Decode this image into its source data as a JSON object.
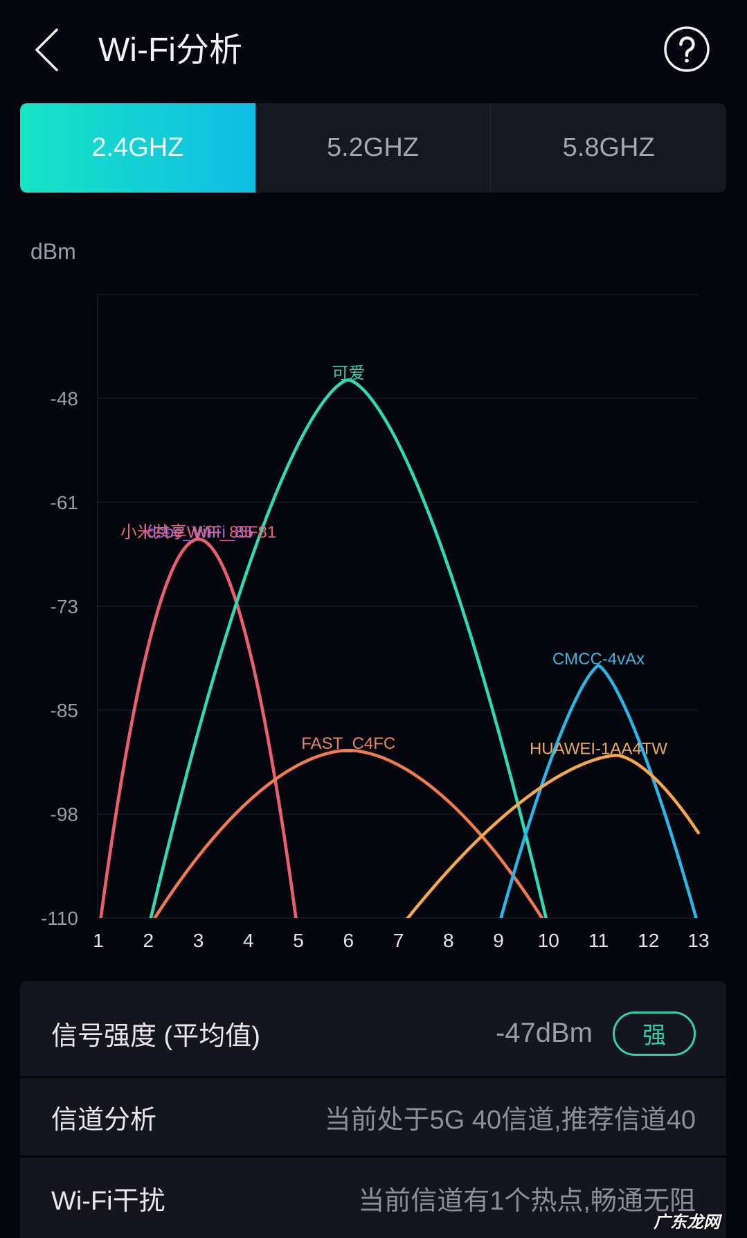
{
  "header": {
    "title": "Wi-Fi分析",
    "back_icon": "chevron-left-icon",
    "help_icon": "question-circle-icon"
  },
  "tabs": [
    {
      "label": "2.4GHZ",
      "selected": true
    },
    {
      "label": "5.2GHZ",
      "selected": false
    },
    {
      "label": "5.8GHZ",
      "selected": false
    }
  ],
  "colors": {
    "background": "#05050e",
    "tab_gradient_start": "#17e4c4",
    "tab_gradient_end": "#11bce5",
    "panel": "#15151f",
    "strong_badge": "#2fd3a8",
    "grid": "#1a1a2c"
  },
  "chart_data": {
    "type": "line",
    "title": "",
    "xlabel": "",
    "ylabel": "dBm",
    "x_ticks": [
      1,
      2,
      3,
      4,
      5,
      6,
      7,
      8,
      9,
      10,
      11,
      12,
      13
    ],
    "y_ticks": [
      "-48",
      "-61",
      "-73",
      "-85",
      "-98",
      "-110"
    ],
    "xlim": [
      1,
      13
    ],
    "ylim": [
      -110,
      -35.6
    ],
    "grid": true,
    "legend": "labels at curve peaks",
    "series": [
      {
        "name": "ldsbe_WiFi_85",
        "channel": 3,
        "rssi_dbm": -65,
        "color": "#9c5ee0",
        "label_color": "#a46ae6",
        "curve": {
          "peak_ch": 3,
          "peak_dbm": -64.8,
          "left_width": 1.95,
          "right_width": 1.95,
          "exponent": 1.9
        }
      },
      {
        "name": "小米共享WiFi_85F81",
        "channel": 3,
        "rssi_dbm": -65,
        "color": "#e9606c",
        "label_color": "#e2667c",
        "curve": {
          "peak_ch": 3,
          "peak_dbm": -64.8,
          "left_width": 1.95,
          "right_width": 1.95,
          "exponent": 1.9
        }
      },
      {
        "name": "FAST_C4FC",
        "channel": 6,
        "rssi_dbm": -90,
        "color": "#f07b4f",
        "label_color": "#e88462",
        "curve": {
          "peak_ch": 6,
          "peak_dbm": -90,
          "left_width": 3.87,
          "right_width": 3.87,
          "exponent": 1.8
        }
      },
      {
        "name": "可爱",
        "channel": 6,
        "rssi_dbm": -46,
        "color": "#2edbb2",
        "label_color": "#3cc8a4",
        "curve": {
          "peak_ch": 6,
          "peak_dbm": -45.8,
          "left_width": 3.95,
          "right_width": 3.95,
          "exponent": 1.55
        }
      },
      {
        "name": "CMCC-4vAx",
        "channel": 11,
        "rssi_dbm": -80,
        "color": "#27b8e8",
        "label_color": "#40b2dc",
        "curve": {
          "peak_ch": 11,
          "peak_dbm": -79.9,
          "left_width": 1.95,
          "right_width": 1.95,
          "exponent": 1.38
        }
      },
      {
        "name": "HUAWEI-1AA4TW",
        "channel": 11,
        "rssi_dbm": -91,
        "color": "#f6a84a",
        "label_color": "#e8a962",
        "curve": {
          "peak_ch": 11.36,
          "peak_dbm": -90.6,
          "left_width": 4.17,
          "right_width": 2.6,
          "exponent": 1.6
        }
      }
    ]
  },
  "info": {
    "signal": {
      "label": "信号强度 (平均值)",
      "value": "-47dBm",
      "badge": "强"
    },
    "channel": {
      "label": "信道分析",
      "value": "当前处于5G 40信道,推荐信道40"
    },
    "interference": {
      "label": "Wi-Fi干扰",
      "value": "当前信道有1个热点,畅通无阻"
    }
  },
  "watermark": "广东龙网"
}
